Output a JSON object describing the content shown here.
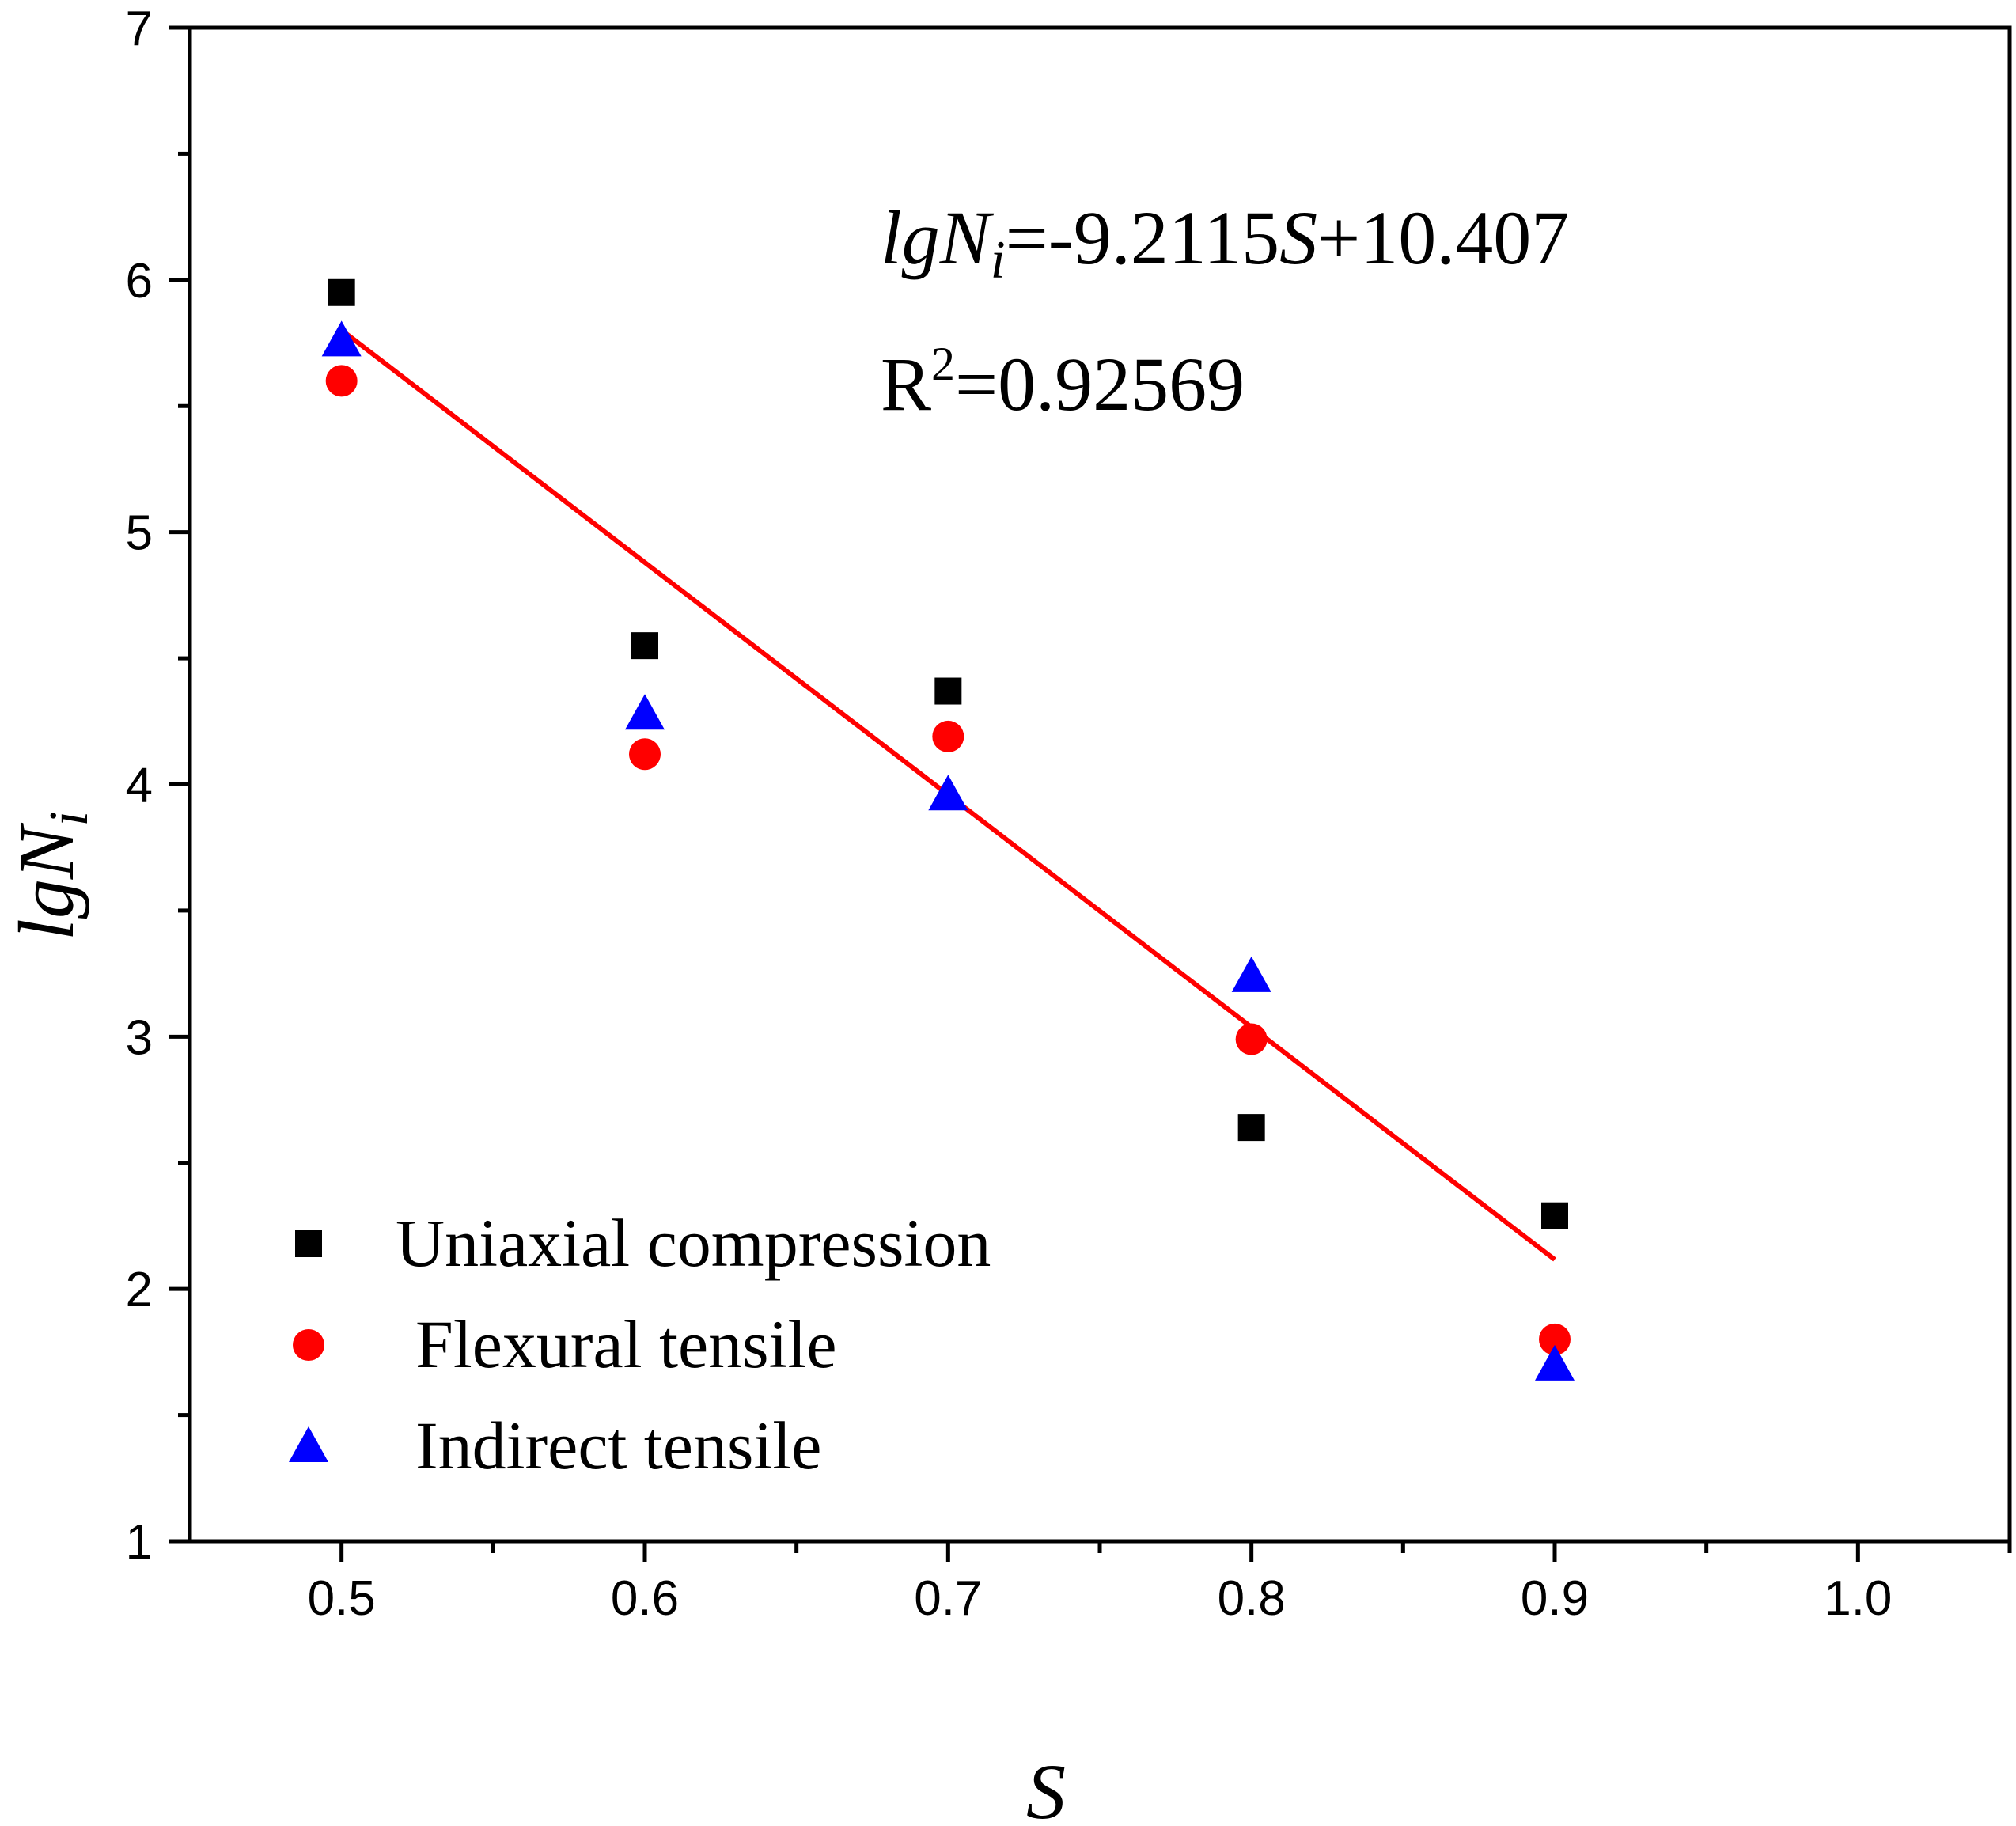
{
  "chart_data": {
    "type": "scatter",
    "xlabel": "S",
    "ylabel": {
      "base": "lgN",
      "sub": "i"
    },
    "xlim": [
      0.45,
      1.05
    ],
    "ylim": [
      1,
      7
    ],
    "x_ticks": [
      0.5,
      0.6,
      0.7,
      0.8,
      0.9,
      1.0
    ],
    "x_tick_labels": [
      "0.5",
      "0.6",
      "0.7",
      "0.8",
      "0.9",
      "1.0"
    ],
    "y_ticks": [
      1,
      2,
      3,
      4,
      5,
      6,
      7
    ],
    "y_tick_labels": [
      "1",
      "2",
      "3",
      "4",
      "5",
      "6",
      "7"
    ],
    "grid": false,
    "legend_position": "bottom-left",
    "series": [
      {
        "name": "Uniaxial compression",
        "marker": "square",
        "color": "#000000",
        "x": [
          0.5,
          0.6,
          0.7,
          0.8,
          0.9
        ],
        "y": [
          5.95,
          4.55,
          4.37,
          2.64,
          2.29
        ]
      },
      {
        "name": "Flexural tensile",
        "marker": "circle",
        "color": "#ff0000",
        "x": [
          0.5,
          0.6,
          0.7,
          0.8,
          0.9
        ],
        "y": [
          5.6,
          4.12,
          4.19,
          2.99,
          1.8
        ]
      },
      {
        "name": "Indirect tensile",
        "marker": "triangle",
        "color": "#0000ff",
        "x": [
          0.5,
          0.6,
          0.7,
          0.8,
          0.9
        ],
        "y": [
          5.76,
          4.28,
          3.96,
          3.24,
          1.7
        ]
      }
    ],
    "fit": {
      "slope": -9.2115,
      "intercept": 10.407,
      "x_range": [
        0.5,
        0.9
      ],
      "color": "#ff0000",
      "equation": {
        "lhs_base": "lgN",
        "lhs_sub": "i",
        "eq_text": "=-9.2115",
        "var": "S",
        "rest": "+10.407"
      },
      "r2": {
        "prefix": "R",
        "sup": "2",
        "value": "=0.92569"
      }
    }
  }
}
